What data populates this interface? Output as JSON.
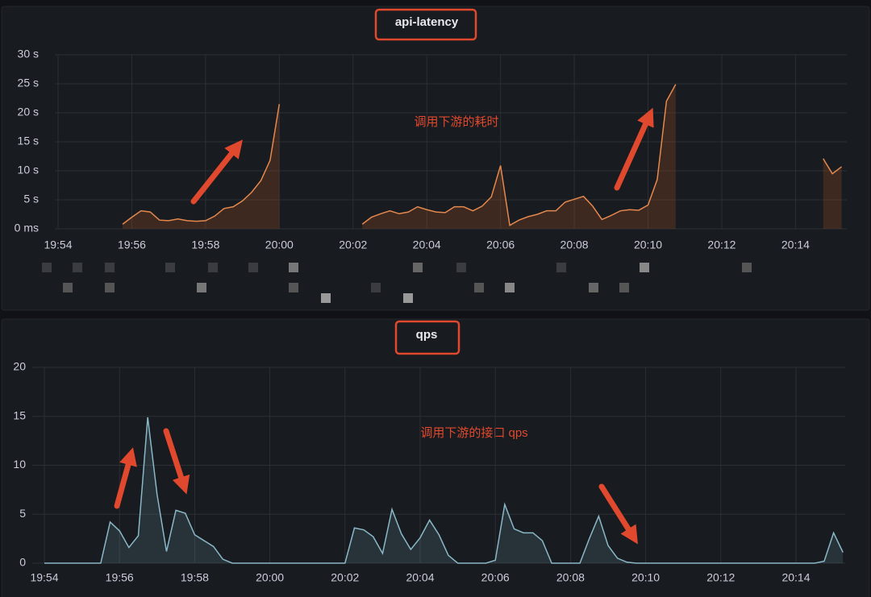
{
  "chart_data": [
    {
      "type": "line",
      "title": "api-latency",
      "annotation": "调用下游的耗时",
      "color": "#e5884e",
      "grid": true,
      "categories": [
        "19:54",
        null,
        null,
        null,
        null,
        null,
        null,
        null,
        "19:56",
        null,
        null,
        null,
        null,
        null,
        null,
        null,
        "19:58",
        null,
        null,
        null,
        null,
        null,
        null,
        null,
        "20:00",
        null,
        null,
        null,
        null,
        null,
        null,
        null,
        "20:02",
        null,
        null,
        null,
        null,
        null,
        null,
        null,
        "20:04",
        null,
        null,
        null,
        null,
        null,
        null,
        null,
        "20:06",
        null,
        null,
        null,
        null,
        null,
        null,
        null,
        "20:08",
        null,
        null,
        null,
        null,
        null,
        null,
        null,
        "20:10",
        null,
        null,
        null,
        null,
        null,
        null,
        null,
        "20:12",
        null,
        null,
        null,
        null,
        null,
        null,
        null,
        "20:14",
        null,
        null,
        null,
        null,
        null
      ],
      "values": [
        null,
        null,
        null,
        null,
        null,
        null,
        null,
        0.8,
        2,
        3.1,
        2.9,
        1.5,
        1.4,
        1.7,
        1.4,
        1.3,
        1.4,
        2.2,
        3.5,
        3.8,
        4.8,
        6.3,
        8.3,
        11.8,
        21.5,
        null,
        null,
        null,
        null,
        null,
        null,
        null,
        null,
        0.8,
        2,
        2.6,
        3.1,
        2.6,
        2.9,
        3.8,
        3.3,
        2.9,
        2.8,
        3.8,
        3.8,
        3.1,
        3.9,
        5.5,
        10.9,
        0.6,
        1.5,
        2.1,
        2.5,
        3.1,
        3.1,
        4.6,
        5.1,
        5.6,
        3.9,
        1.6,
        2.3,
        3.1,
        3.3,
        3.2,
        4.1,
        8.5,
        22,
        24.9,
        null,
        null,
        null,
        null,
        null,
        null,
        null,
        null,
        null,
        null,
        null,
        null,
        null,
        null,
        null,
        12.1,
        9.5,
        10.7
      ],
      "ylim": [
        0,
        30
      ],
      "yticks": [
        {
          "value": 0,
          "label": "0 ms"
        },
        {
          "value": 5,
          "label": "5 s"
        },
        {
          "value": 10,
          "label": "10 s"
        },
        {
          "value": 15,
          "label": "15 s"
        },
        {
          "value": 20,
          "label": "20 s"
        },
        {
          "value": 25,
          "label": "25 s"
        },
        {
          "value": 30,
          "label": "30 s"
        }
      ]
    },
    {
      "type": "line",
      "title": "qps",
      "annotation": "调用下游的接口 qps",
      "color": "#8ab8c8",
      "grid": true,
      "categories": [
        "19:54",
        null,
        null,
        null,
        null,
        null,
        null,
        null,
        "19:56",
        null,
        null,
        null,
        null,
        null,
        null,
        null,
        "19:58",
        null,
        null,
        null,
        null,
        null,
        null,
        null,
        "20:00",
        null,
        null,
        null,
        null,
        null,
        null,
        null,
        "20:02",
        null,
        null,
        null,
        null,
        null,
        null,
        null,
        "20:04",
        null,
        null,
        null,
        null,
        null,
        null,
        null,
        "20:06",
        null,
        null,
        null,
        null,
        null,
        null,
        null,
        "20:08",
        null,
        null,
        null,
        null,
        null,
        null,
        null,
        "20:10",
        null,
        null,
        null,
        null,
        null,
        null,
        null,
        "20:12",
        null,
        null,
        null,
        null,
        null,
        null,
        null,
        "20:14",
        null,
        null,
        null,
        null,
        null
      ],
      "values": [
        0,
        0,
        0,
        0,
        0,
        0,
        0,
        4.2,
        3.3,
        1.6,
        2.8,
        14.9,
        7,
        1.2,
        5.4,
        5.1,
        2.9,
        2.3,
        1.7,
        0.4,
        0,
        0,
        0,
        0,
        0,
        0,
        0,
        0,
        0,
        0,
        0,
        0,
        0,
        3.6,
        3.4,
        2.7,
        1.0,
        5.5,
        3.0,
        1.4,
        2.6,
        4.4,
        2.9,
        0.8,
        0,
        0,
        0,
        0,
        0.3,
        6.0,
        3.5,
        3.1,
        3.1,
        2.3,
        0,
        0,
        0,
        0,
        2.5,
        4.8,
        1.8,
        0.5,
        0.1,
        0,
        0,
        0,
        0,
        0,
        0,
        0,
        0,
        0,
        0,
        0,
        0,
        0,
        0,
        0,
        0,
        0,
        0,
        0,
        0,
        0.2,
        3.1,
        1.1
      ],
      "ylim": [
        0,
        20
      ],
      "yticks": [
        0,
        5,
        10,
        15,
        20
      ]
    }
  ]
}
